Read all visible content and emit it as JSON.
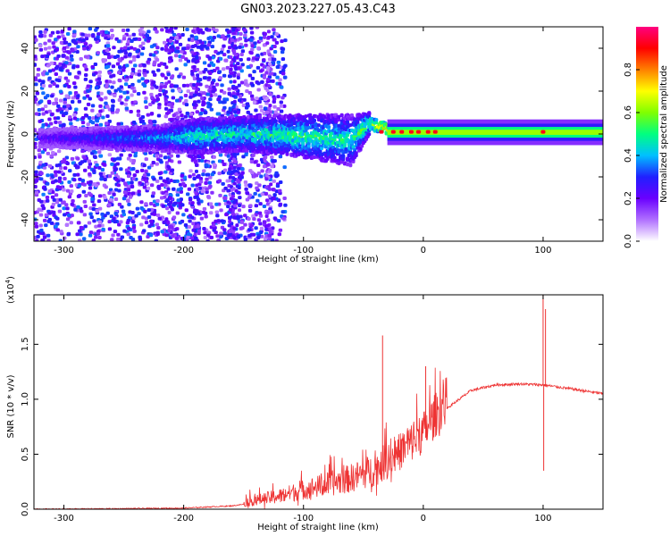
{
  "title": "GN03.2023.227.05.43.C43",
  "chart_data": [
    {
      "type": "heatmap",
      "xlabel": "Height of straight line (km)",
      "ylabel": "Frequency (Hz)",
      "xlim": [
        -325,
        150
      ],
      "ylim": [
        -50,
        50
      ],
      "xticks": [
        -300,
        -200,
        -100,
        0,
        100
      ],
      "yticks": [
        -40,
        -20,
        0,
        20,
        40
      ],
      "colorbar": {
        "label": "Normalized spectral amplitude",
        "range": [
          0,
          1
        ],
        "ticks": [
          "0.0",
          "0.2",
          "0.4",
          "0.6",
          "0.8"
        ],
        "colors": [
          "#ffffff",
          "#b070ff",
          "#6a00ff",
          "#2020ff",
          "#00c0ff",
          "#00ff80",
          "#80ff00",
          "#ffff00",
          "#ff8000",
          "#ff0000",
          "#ff0080"
        ]
      },
      "band": [
        {
          "x": -320,
          "center": -2,
          "width": 4,
          "amp": 0.25
        },
        {
          "x": -220,
          "center": -2,
          "width": 6,
          "amp": 0.4
        },
        {
          "x": -190,
          "center": -1,
          "width": 8,
          "amp": 0.5
        },
        {
          "x": -150,
          "center": 0,
          "width": 8,
          "amp": 0.5
        },
        {
          "x": -100,
          "center": -1,
          "width": 10,
          "amp": 0.55
        },
        {
          "x": -60,
          "center": -3,
          "width": 12,
          "amp": 0.5
        },
        {
          "x": -45,
          "center": 5,
          "width": 5,
          "amp": 0.6
        },
        {
          "x": -20,
          "center": 1,
          "width": 4,
          "amp": 0.85
        },
        {
          "x": 0,
          "center": 0,
          "width": 4,
          "amp": 0.8
        },
        {
          "x": 50,
          "center": 0,
          "width": 4,
          "amp": 0.55
        },
        {
          "x": 100,
          "center": 1,
          "width": 5,
          "amp": 0.6
        },
        {
          "x": 150,
          "center": 1,
          "width": 4,
          "amp": 0.55
        }
      ]
    },
    {
      "type": "line",
      "xlabel": "Height of straight line (km)",
      "ylabel": "SNR (10 * v/v)",
      "yscale_label": "(x10",
      "yscale_exp": "4",
      "yscale_close": ")",
      "xlim": [
        -325,
        150
      ],
      "ylim": [
        0,
        1.95
      ],
      "xticks": [
        -300,
        -200,
        -100,
        0,
        100
      ],
      "yticks": [
        "0.0",
        "0.5",
        "1.0",
        "1.5"
      ],
      "color": "#ee3333",
      "series": [
        {
          "x": [
            -325,
            -250,
            -200,
            -160,
            -140,
            -120,
            -100,
            -80,
            -60,
            -40,
            -20,
            0,
            20,
            40,
            60,
            80,
            100,
            120,
            150
          ],
          "y": [
            0.0,
            0.005,
            0.01,
            0.03,
            0.06,
            0.09,
            0.14,
            0.18,
            0.23,
            0.3,
            0.45,
            0.62,
            0.92,
            1.08,
            1.13,
            1.14,
            1.13,
            1.1,
            1.05
          ]
        }
      ],
      "spikes": [
        {
          "x": -34,
          "y": 1.58
        },
        {
          "x": 2,
          "y": 1.3
        },
        {
          "x": 100,
          "y": 1.95
        },
        {
          "x": 102,
          "y": 1.82
        },
        {
          "x": 100.5,
          "y": 0.35
        }
      ]
    }
  ]
}
